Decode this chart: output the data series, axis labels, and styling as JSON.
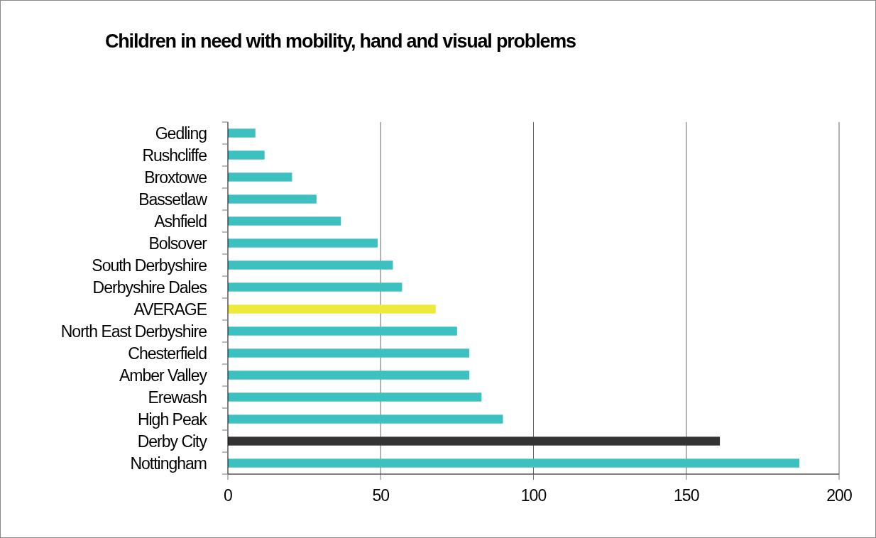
{
  "chart_data": {
    "type": "bar",
    "title": "Children in need with mobility, hand and visual problems",
    "orientation": "horizontal",
    "categories": [
      "Gedling",
      "Rushcliffe",
      "Broxtowe",
      "Bassetlaw",
      "Ashfield",
      "Bolsover",
      "South Derbyshire",
      "Derbyshire Dales",
      "AVERAGE",
      "North East Derbyshire",
      "Chesterfield",
      "Amber Valley",
      "Erewash",
      "High Peak",
      "Derby City",
      "Nottingham"
    ],
    "values": [
      9,
      12,
      21,
      29,
      37,
      49,
      54,
      57,
      68,
      75,
      79,
      79,
      83,
      90,
      161,
      187
    ],
    "colors": [
      "#3dc0c0",
      "#3dc0c0",
      "#3dc0c0",
      "#3dc0c0",
      "#3dc0c0",
      "#3dc0c0",
      "#3dc0c0",
      "#3dc0c0",
      "#eeea3a",
      "#3dc0c0",
      "#3dc0c0",
      "#3dc0c0",
      "#3dc0c0",
      "#3dc0c0",
      "#333333",
      "#3dc0c0"
    ],
    "xlim": [
      0,
      200
    ],
    "xticks": [
      0,
      50,
      100,
      150,
      200
    ],
    "grid": "x"
  }
}
